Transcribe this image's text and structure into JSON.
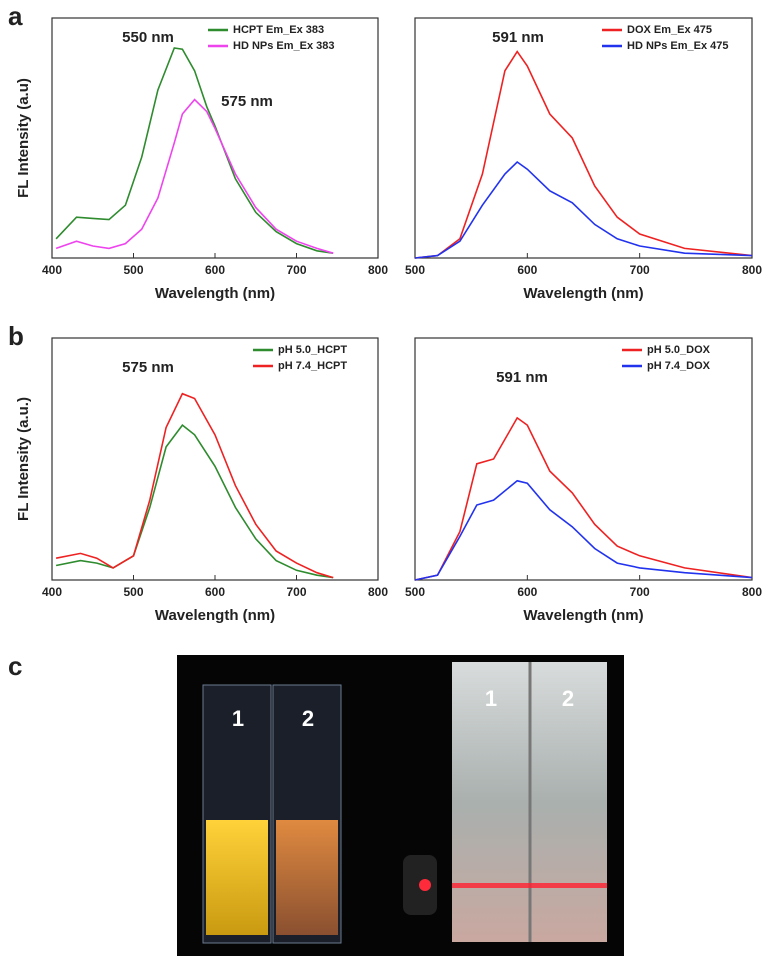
{
  "panels": [
    "a",
    "b",
    "c"
  ],
  "photo": {
    "labels": [
      "1",
      "2",
      "1",
      "2"
    ]
  },
  "chart_data": [
    {
      "type": "line",
      "xlabel": "Wavelength (nm)",
      "ylabel": "FL Intensity (a.u)",
      "annotations": [
        "550 nm",
        "575 nm"
      ],
      "xlim": [
        400,
        800
      ],
      "xticks": [
        400,
        500,
        600,
        700,
        800
      ],
      "ylim": [
        0,
        1
      ],
      "legend": "upper right",
      "x": [
        405,
        430,
        450,
        470,
        490,
        510,
        530,
        550,
        560,
        575,
        590,
        600,
        625,
        650,
        675,
        700,
        725,
        745
      ],
      "series": [
        {
          "name": "HCPT Em_Ex 383",
          "color": "#2e8b2e",
          "values": [
            0.08,
            0.17,
            0.165,
            0.16,
            0.22,
            0.42,
            0.7,
            0.875,
            0.87,
            0.78,
            0.63,
            0.55,
            0.33,
            0.19,
            0.11,
            0.06,
            0.03,
            0.02
          ]
        },
        {
          "name": "HD NPs Em_Ex 383",
          "color": "#ee44ee",
          "values": [
            0.04,
            0.07,
            0.05,
            0.04,
            0.06,
            0.12,
            0.25,
            0.48,
            0.6,
            0.66,
            0.61,
            0.54,
            0.35,
            0.21,
            0.12,
            0.07,
            0.04,
            0.02
          ]
        }
      ]
    },
    {
      "type": "line",
      "xlabel": "Wavelength (nm)",
      "annotations": [
        "591 nm"
      ],
      "xlim": [
        500,
        800
      ],
      "xticks": [
        500,
        600,
        700,
        800
      ],
      "ylim": [
        0,
        1
      ],
      "legend": "upper right",
      "x": [
        500,
        520,
        540,
        560,
        580,
        591,
        600,
        620,
        640,
        660,
        680,
        700,
        740,
        800
      ],
      "series": [
        {
          "name": "DOX Em_Ex 475",
          "color": "#ee2222",
          "values": [
            0.0,
            0.01,
            0.08,
            0.35,
            0.78,
            0.86,
            0.8,
            0.6,
            0.5,
            0.3,
            0.17,
            0.1,
            0.04,
            0.01
          ]
        },
        {
          "name": "HD NPs Em_Ex 475",
          "color": "#2233ee",
          "values": [
            0.0,
            0.01,
            0.07,
            0.22,
            0.35,
            0.4,
            0.37,
            0.28,
            0.23,
            0.14,
            0.08,
            0.05,
            0.02,
            0.01
          ]
        }
      ]
    },
    {
      "type": "line",
      "xlabel": "Wavelength (nm)",
      "ylabel": "FL Intensity (a.u.)",
      "annotations": [
        "575 nm"
      ],
      "xlim": [
        400,
        800
      ],
      "xticks": [
        400,
        500,
        600,
        700,
        800
      ],
      "ylim": [
        0,
        1
      ],
      "legend": "upper right",
      "x": [
        405,
        435,
        455,
        475,
        500,
        520,
        540,
        560,
        575,
        600,
        625,
        650,
        675,
        700,
        725,
        745
      ],
      "series": [
        {
          "name": "pH 5.0_HCPT",
          "color": "#2e8b2e",
          "values": [
            0.06,
            0.08,
            0.07,
            0.05,
            0.1,
            0.3,
            0.55,
            0.64,
            0.6,
            0.47,
            0.3,
            0.17,
            0.08,
            0.04,
            0.02,
            0.01
          ]
        },
        {
          "name": "pH 7.4_HCPT",
          "color": "#ee2222",
          "values": [
            0.09,
            0.11,
            0.09,
            0.05,
            0.1,
            0.33,
            0.63,
            0.77,
            0.75,
            0.6,
            0.39,
            0.23,
            0.12,
            0.07,
            0.03,
            0.01
          ]
        }
      ]
    },
    {
      "type": "line",
      "xlabel": "Wavelength (nm)",
      "annotations": [
        "591 nm"
      ],
      "xlim": [
        500,
        800
      ],
      "xticks": [
        500,
        600,
        700,
        800
      ],
      "ylim": [
        0,
        1
      ],
      "legend": "upper right",
      "x": [
        500,
        520,
        540,
        555,
        570,
        591,
        600,
        620,
        640,
        660,
        680,
        700,
        740,
        800
      ],
      "series": [
        {
          "name": "pH 5.0_DOX",
          "color": "#ee2222",
          "values": [
            0.0,
            0.02,
            0.2,
            0.48,
            0.5,
            0.67,
            0.64,
            0.45,
            0.36,
            0.23,
            0.14,
            0.1,
            0.05,
            0.01
          ]
        },
        {
          "name": "pH 7.4_DOX",
          "color": "#2233ee",
          "values": [
            0.0,
            0.02,
            0.18,
            0.31,
            0.33,
            0.41,
            0.4,
            0.29,
            0.22,
            0.13,
            0.07,
            0.05,
            0.03,
            0.01
          ]
        }
      ]
    }
  ]
}
